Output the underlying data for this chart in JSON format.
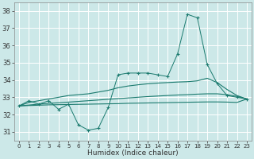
{
  "xlabel": "Humidex (Indice chaleur)",
  "xlim": [
    -0.5,
    23.5
  ],
  "ylim": [
    30.5,
    38.5
  ],
  "yticks": [
    31,
    32,
    33,
    34,
    35,
    36,
    37,
    38
  ],
  "xticks": [
    0,
    1,
    2,
    3,
    4,
    5,
    6,
    7,
    8,
    9,
    10,
    11,
    12,
    13,
    14,
    15,
    16,
    17,
    18,
    19,
    20,
    21,
    22,
    23
  ],
  "bg_color": "#cce8e8",
  "grid_color": "#b8d8d8",
  "line_color": "#1a7a6e",
  "line1_x": [
    0,
    1,
    2,
    3,
    4,
    5,
    6,
    7,
    8,
    9,
    10,
    11,
    12,
    13,
    14,
    15,
    16,
    17,
    18,
    19,
    20,
    21,
    22,
    23
  ],
  "line1_y": [
    32.5,
    32.8,
    32.6,
    32.8,
    32.3,
    32.6,
    31.4,
    31.1,
    31.2,
    32.4,
    34.3,
    34.4,
    34.4,
    34.4,
    34.3,
    34.2,
    35.5,
    37.8,
    37.6,
    34.9,
    33.8,
    33.1,
    33.0,
    32.9
  ],
  "line2_x": [
    0,
    1,
    2,
    3,
    4,
    5,
    6,
    7,
    8,
    9,
    10,
    11,
    12,
    13,
    14,
    15,
    16,
    17,
    18,
    19,
    20,
    21,
    22,
    23
  ],
  "line2_y": [
    32.5,
    32.7,
    32.8,
    32.9,
    33.0,
    33.1,
    33.15,
    33.2,
    33.3,
    33.4,
    33.55,
    33.65,
    33.72,
    33.78,
    33.82,
    33.85,
    33.88,
    33.9,
    33.95,
    34.1,
    33.85,
    33.45,
    33.1,
    32.9
  ],
  "line3_x": [
    0,
    1,
    2,
    3,
    4,
    5,
    6,
    7,
    8,
    9,
    10,
    11,
    12,
    13,
    14,
    15,
    16,
    17,
    18,
    19,
    20,
    21,
    22,
    23
  ],
  "line3_y": [
    32.5,
    32.55,
    32.6,
    32.65,
    32.68,
    32.72,
    32.76,
    32.8,
    32.84,
    32.88,
    32.92,
    32.96,
    33.0,
    33.04,
    33.07,
    33.1,
    33.13,
    33.15,
    33.18,
    33.2,
    33.2,
    33.15,
    33.05,
    32.9
  ],
  "line4_x": [
    0,
    1,
    2,
    3,
    4,
    5,
    6,
    7,
    8,
    9,
    10,
    11,
    12,
    13,
    14,
    15,
    16,
    17,
    18,
    19,
    20,
    21,
    22,
    23
  ],
  "line4_y": [
    32.5,
    32.52,
    32.54,
    32.56,
    32.57,
    32.58,
    32.59,
    32.6,
    32.61,
    32.62,
    32.63,
    32.65,
    32.66,
    32.67,
    32.68,
    32.69,
    32.7,
    32.71,
    32.72,
    32.73,
    32.73,
    32.72,
    32.7,
    32.9
  ]
}
